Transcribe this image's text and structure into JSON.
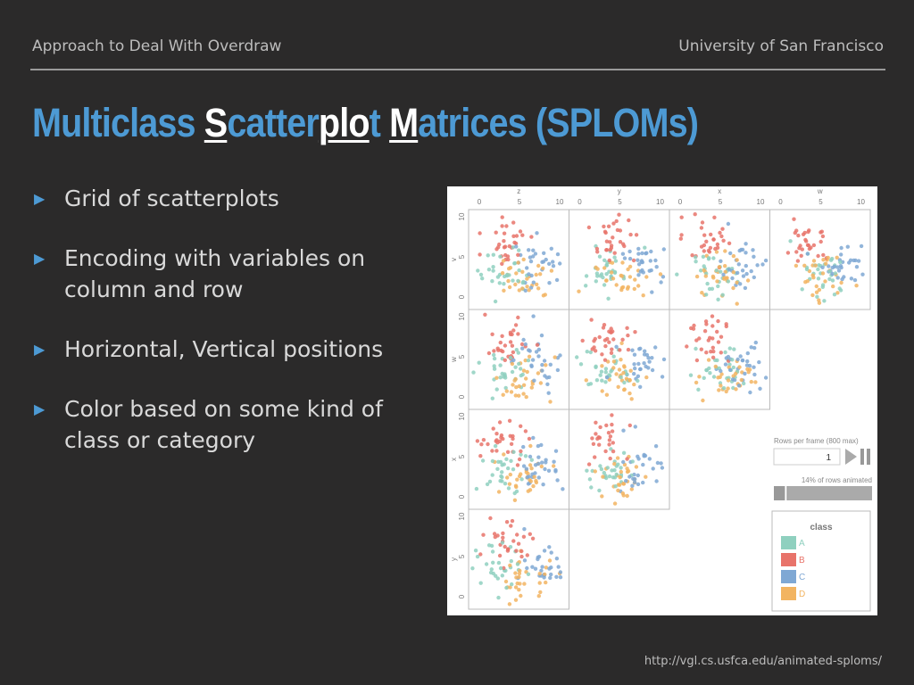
{
  "header": {
    "left": "Approach to Deal With Overdraw",
    "right": "University of San Francisco"
  },
  "title": {
    "parts": [
      {
        "text": "Multiclass ",
        "hl": false
      },
      {
        "text": "S",
        "hl": true
      },
      {
        "text": "catter",
        "hl": false
      },
      {
        "text": "plo",
        "hl": true
      },
      {
        "text": "t ",
        "hl": false
      },
      {
        "text": "M",
        "hl": true
      },
      {
        "text": "atrices (SPLOMs)",
        "hl": false
      }
    ]
  },
  "bullets": [
    "Grid of scatterplots",
    "Encoding with variables on column and row",
    "Horizontal, Vertical positions",
    "Color based on some kind of class or category"
  ],
  "figure": {
    "columns": [
      "z",
      "y",
      "x",
      "w"
    ],
    "rows": [
      "v",
      "w",
      "x",
      "y"
    ],
    "tick_labels": [
      "0",
      "5",
      "10"
    ],
    "controls": {
      "rows_per_frame_label": "Rows per frame (800 max)",
      "rows_per_frame_value": "1",
      "progress_label": "14% of rows animated",
      "progress_fraction": 0.14
    },
    "legend": {
      "title": "class",
      "items": [
        {
          "label": "A",
          "color": "#8fd0bf"
        },
        {
          "label": "B",
          "color": "#e8736a"
        },
        {
          "label": "C",
          "color": "#7fa8d4"
        },
        {
          "label": "D",
          "color": "#f2b461"
        }
      ]
    }
  },
  "footer_url": "http://vgl.cs.usfca.edu/animated-sploms/"
}
